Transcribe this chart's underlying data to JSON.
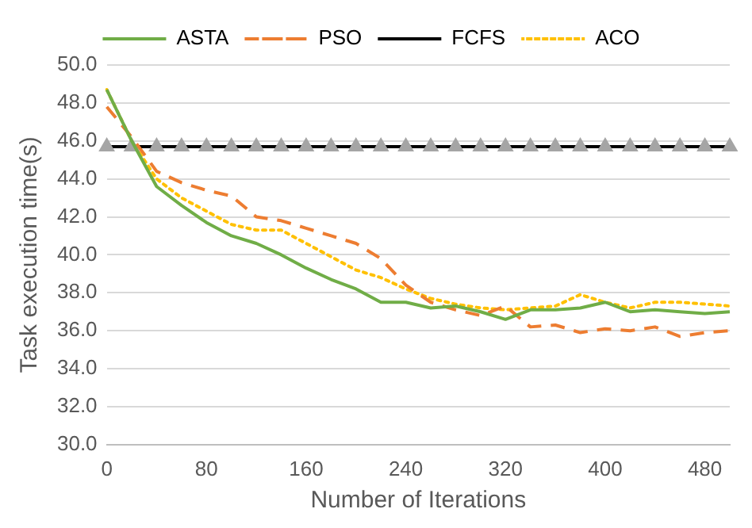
{
  "chart_data": {
    "type": "line",
    "xlabel": "Number of Iterations",
    "ylabel": "Task execution time(s)",
    "categories": [
      "0",
      null,
      null,
      null,
      "80",
      null,
      null,
      null,
      "160",
      null,
      null,
      null,
      "240",
      null,
      null,
      null,
      "320",
      null,
      null,
      null,
      "400",
      null,
      null,
      null,
      "480",
      null
    ],
    "series": [
      {
        "name": "ASTA",
        "color": "#70ad47",
        "line_style": "solid",
        "marker": "none",
        "values": [
          48.7,
          46.0,
          43.6,
          42.6,
          41.7,
          41.0,
          40.6,
          40.0,
          39.3,
          38.7,
          38.2,
          37.5,
          37.5,
          37.2,
          37.3,
          37.0,
          36.6,
          37.1,
          37.1,
          37.2,
          37.5,
          37.0,
          37.1,
          37.0,
          36.9,
          37.0
        ]
      },
      {
        "name": "PSO",
        "color": "#ed7d31",
        "line_style": "dashed",
        "marker": "none",
        "values": [
          47.8,
          46.2,
          44.4,
          43.8,
          43.4,
          43.1,
          42.0,
          41.8,
          41.4,
          41.0,
          40.6,
          39.8,
          38.4,
          37.5,
          37.1,
          36.8,
          37.3,
          36.2,
          36.3,
          35.9,
          36.1,
          36.0,
          36.2,
          35.7,
          35.9,
          36.0
        ]
      },
      {
        "name": "FCFS",
        "color": "#000000",
        "line_style": "solid",
        "marker": "triangle",
        "values": [
          45.7,
          45.7,
          45.7,
          45.7,
          45.7,
          45.7,
          45.7,
          45.7,
          45.7,
          45.7,
          45.7,
          45.7,
          45.7,
          45.7,
          45.7,
          45.7,
          45.7,
          45.7,
          45.7,
          45.7,
          45.7,
          45.7,
          45.7,
          45.7,
          45.7,
          45.7
        ]
      },
      {
        "name": "ACO",
        "color": "#ffc000",
        "line_style": "dotted",
        "marker": "none",
        "values": [
          48.7,
          46.0,
          44.0,
          43.0,
          42.3,
          41.6,
          41.3,
          41.3,
          40.6,
          39.9,
          39.2,
          38.8,
          38.2,
          37.7,
          37.4,
          37.2,
          37.1,
          37.2,
          37.3,
          37.9,
          37.5,
          37.2,
          37.5,
          37.5,
          37.4,
          37.3
        ]
      }
    ],
    "ylim": [
      30,
      50
    ],
    "yticks": [
      {
        "value": 30,
        "label": "30.0"
      },
      {
        "value": 32,
        "label": "32.0"
      },
      {
        "value": 34,
        "label": "34.0"
      },
      {
        "value": 36,
        "label": "36.0"
      },
      {
        "value": 38,
        "label": "38.0"
      },
      {
        "value": 40,
        "label": "40.0"
      },
      {
        "value": 42,
        "label": "42.0"
      },
      {
        "value": 44,
        "label": "44.0"
      },
      {
        "value": 46,
        "label": "46.0"
      },
      {
        "value": 48,
        "label": "48.0"
      },
      {
        "value": 50,
        "label": "50.0"
      }
    ],
    "grid": "y",
    "legend": "top"
  }
}
